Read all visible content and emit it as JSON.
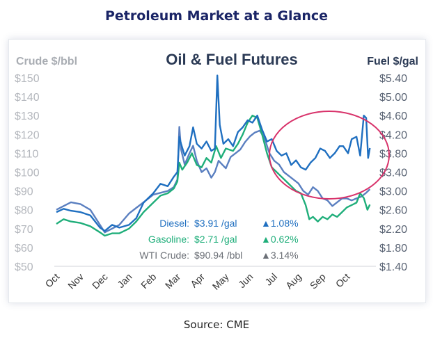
{
  "page_title": "Petroleum Market at a Glance",
  "source": "Source: CME",
  "colors": {
    "diesel": "#1f6fc0",
    "gasoline": "#1fae7a",
    "wti": "#5a7fc0",
    "highlight_circle": "#d8326a",
    "left_axis_text": "#b4b7bd",
    "right_axis_text": "#5a6474"
  },
  "chart_data": {
    "type": "line",
    "title": "Oil & Fuel Futures",
    "left_axis_label": "Crude $/bbl",
    "right_axis_label": "Fuel $/gal",
    "left_ticks": [
      "$50",
      "$60",
      "$70",
      "$80",
      "$90",
      "$100",
      "$110",
      "$120",
      "$130",
      "$140",
      "$150"
    ],
    "right_ticks": [
      "$1.40",
      "$1.80",
      "$2.20",
      "$2.60",
      "$3.00",
      "$3.40",
      "$3.80",
      "$4.20",
      "$4.60",
      "$5.00",
      "$5.40"
    ],
    "left_ylim": [
      50,
      150
    ],
    "right_ylim": [
      1.4,
      5.4
    ],
    "x_labels": [
      "Oct",
      "Nov",
      "Dec",
      "Jan",
      "Feb",
      "Mar",
      "Apr",
      "May",
      "Jun",
      "Jul",
      "Aug",
      "Sep",
      "Oct"
    ],
    "grid": false,
    "legend": [
      {
        "series": "Diesel",
        "label": "Diesel:",
        "value": "$3.91 /gal",
        "change": "▲1.08%"
      },
      {
        "series": "Gasoline",
        "label": "Gasoline:",
        "value": "$2.71 /gal",
        "change": "▲0.62%"
      },
      {
        "series": "WTI Crude",
        "label": "WTI Crude:",
        "value": "$90.94 /bbl",
        "change": "▲3.14%"
      }
    ],
    "series": [
      {
        "name": "Diesel",
        "axis": "right",
        "color": "#1f6fc0",
        "points": [
          [
            0,
            2.55
          ],
          [
            0.3,
            2.62
          ],
          [
            0.6,
            2.58
          ],
          [
            1,
            2.55
          ],
          [
            1.4,
            2.48
          ],
          [
            1.8,
            2.22
          ],
          [
            2,
            2.15
          ],
          [
            2.3,
            2.28
          ],
          [
            2.6,
            2.22
          ],
          [
            3,
            2.28
          ],
          [
            3.3,
            2.42
          ],
          [
            3.6,
            2.75
          ],
          [
            4,
            2.95
          ],
          [
            4.3,
            3.15
          ],
          [
            4.6,
            3.1
          ],
          [
            4.85,
            3.3
          ],
          [
            5,
            3.4
          ],
          [
            5.08,
            4.15
          ],
          [
            5.15,
            4.0
          ],
          [
            5.3,
            3.75
          ],
          [
            5.5,
            3.95
          ],
          [
            5.65,
            4.35
          ],
          [
            5.8,
            4.0
          ],
          [
            6,
            3.9
          ],
          [
            6.2,
            4.05
          ],
          [
            6.4,
            3.85
          ],
          [
            6.55,
            3.9
          ],
          [
            6.65,
            5.45
          ],
          [
            6.75,
            4.4
          ],
          [
            6.9,
            4.0
          ],
          [
            7.1,
            4.1
          ],
          [
            7.3,
            3.95
          ],
          [
            7.5,
            4.25
          ],
          [
            7.7,
            4.35
          ],
          [
            7.9,
            4.5
          ],
          [
            8.1,
            4.45
          ],
          [
            8.3,
            4.6
          ],
          [
            8.5,
            4.3
          ],
          [
            8.7,
            4.05
          ],
          [
            8.9,
            4.1
          ],
          [
            9.1,
            3.85
          ],
          [
            9.3,
            3.75
          ],
          [
            9.5,
            3.8
          ],
          [
            9.7,
            3.55
          ],
          [
            9.9,
            3.65
          ],
          [
            10.1,
            3.5
          ],
          [
            10.3,
            3.45
          ],
          [
            10.5,
            3.6
          ],
          [
            10.7,
            3.7
          ],
          [
            10.9,
            3.9
          ],
          [
            11.1,
            3.85
          ],
          [
            11.3,
            3.7
          ],
          [
            11.5,
            3.8
          ],
          [
            11.7,
            3.95
          ],
          [
            11.85,
            3.95
          ],
          [
            12.05,
            3.8
          ],
          [
            12.2,
            4.1
          ],
          [
            12.4,
            4.15
          ],
          [
            12.55,
            3.75
          ],
          [
            12.7,
            4.6
          ],
          [
            12.8,
            4.55
          ],
          [
            12.88,
            3.7
          ],
          [
            12.95,
            3.91
          ]
        ]
      },
      {
        "name": "Gasoline",
        "axis": "right",
        "color": "#1fae7a",
        "points": [
          [
            0,
            2.3
          ],
          [
            0.3,
            2.4
          ],
          [
            0.6,
            2.35
          ],
          [
            1,
            2.32
          ],
          [
            1.4,
            2.25
          ],
          [
            1.8,
            2.12
          ],
          [
            2,
            2.05
          ],
          [
            2.3,
            2.1
          ],
          [
            2.6,
            2.1
          ],
          [
            3,
            2.2
          ],
          [
            3.3,
            2.35
          ],
          [
            3.6,
            2.55
          ],
          [
            4,
            2.75
          ],
          [
            4.3,
            2.9
          ],
          [
            4.6,
            2.95
          ],
          [
            4.85,
            3.05
          ],
          [
            5,
            3.2
          ],
          [
            5.08,
            3.6
          ],
          [
            5.2,
            3.45
          ],
          [
            5.4,
            3.6
          ],
          [
            5.6,
            3.8
          ],
          [
            5.8,
            3.55
          ],
          [
            6,
            3.5
          ],
          [
            6.2,
            3.7
          ],
          [
            6.4,
            3.6
          ],
          [
            6.6,
            3.95
          ],
          [
            6.8,
            3.7
          ],
          [
            7,
            3.9
          ],
          [
            7.3,
            3.85
          ],
          [
            7.5,
            4.0
          ],
          [
            7.7,
            4.2
          ],
          [
            7.9,
            4.45
          ],
          [
            8.1,
            4.6
          ],
          [
            8.3,
            4.55
          ],
          [
            8.5,
            4.2
          ],
          [
            8.7,
            3.8
          ],
          [
            8.9,
            3.5
          ],
          [
            9.1,
            3.4
          ],
          [
            9.3,
            3.3
          ],
          [
            9.5,
            3.2
          ],
          [
            9.7,
            3.1
          ],
          [
            9.9,
            3.0
          ],
          [
            10.1,
            2.95
          ],
          [
            10.3,
            2.7
          ],
          [
            10.45,
            2.4
          ],
          [
            10.6,
            2.45
          ],
          [
            10.8,
            2.35
          ],
          [
            11,
            2.45
          ],
          [
            11.2,
            2.4
          ],
          [
            11.4,
            2.5
          ],
          [
            11.6,
            2.45
          ],
          [
            11.8,
            2.55
          ],
          [
            12,
            2.65
          ],
          [
            12.2,
            2.7
          ],
          [
            12.4,
            2.75
          ],
          [
            12.55,
            2.95
          ],
          [
            12.7,
            2.85
          ],
          [
            12.85,
            2.6
          ],
          [
            12.95,
            2.71
          ]
        ]
      },
      {
        "name": "WTI Crude",
        "axis": "left",
        "color": "#5a7fc0",
        "points": [
          [
            0,
            80
          ],
          [
            0.3,
            82
          ],
          [
            0.6,
            84
          ],
          [
            1,
            83
          ],
          [
            1.4,
            80
          ],
          [
            1.8,
            72
          ],
          [
            2,
            68
          ],
          [
            2.3,
            70
          ],
          [
            2.6,
            72
          ],
          [
            3,
            78
          ],
          [
            3.3,
            81
          ],
          [
            3.6,
            84
          ],
          [
            4,
            88
          ],
          [
            4.3,
            89
          ],
          [
            4.6,
            90
          ],
          [
            4.85,
            92
          ],
          [
            5,
            96
          ],
          [
            5.08,
            124
          ],
          [
            5.15,
            112
          ],
          [
            5.3,
            104
          ],
          [
            5.5,
            110
          ],
          [
            5.65,
            114
          ],
          [
            5.8,
            106
          ],
          [
            6,
            100
          ],
          [
            6.2,
            102
          ],
          [
            6.4,
            97
          ],
          [
            6.55,
            100
          ],
          [
            6.7,
            106
          ],
          [
            6.85,
            104
          ],
          [
            7,
            102
          ],
          [
            7.2,
            108
          ],
          [
            7.4,
            110
          ],
          [
            7.6,
            112
          ],
          [
            7.8,
            116
          ],
          [
            8,
            119
          ],
          [
            8.2,
            121
          ],
          [
            8.4,
            122
          ],
          [
            8.6,
            118
          ],
          [
            8.8,
            110
          ],
          [
            9,
            106
          ],
          [
            9.2,
            104
          ],
          [
            9.4,
            100
          ],
          [
            9.6,
            98
          ],
          [
            9.8,
            96
          ],
          [
            10,
            94
          ],
          [
            10.2,
            90
          ],
          [
            10.4,
            88
          ],
          [
            10.6,
            92
          ],
          [
            10.8,
            90
          ],
          [
            11,
            86
          ],
          [
            11.2,
            85
          ],
          [
            11.4,
            82
          ],
          [
            11.6,
            84
          ],
          [
            11.8,
            86
          ],
          [
            12,
            86
          ],
          [
            12.2,
            85
          ],
          [
            12.4,
            86
          ],
          [
            12.6,
            87
          ],
          [
            12.8,
            89
          ],
          [
            12.95,
            90.94
          ]
        ]
      }
    ]
  }
}
